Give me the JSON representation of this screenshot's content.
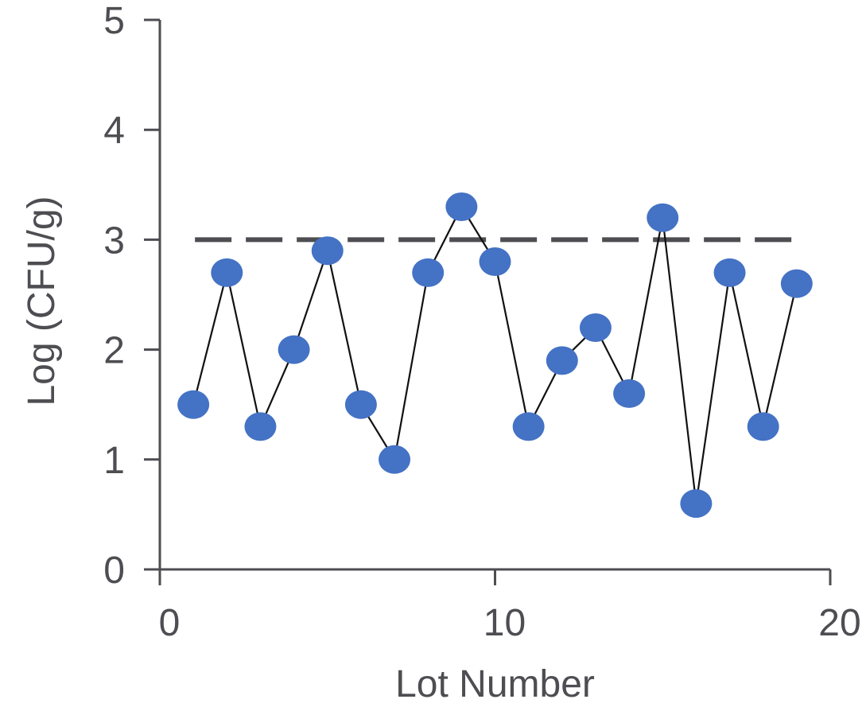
{
  "chart_data": {
    "type": "scatter",
    "title": "",
    "xlabel": "Lot Number",
    "ylabel": "Log (CFU/g)",
    "xlim": [
      0,
      20
    ],
    "ylim": [
      0,
      5
    ],
    "x_ticks": [
      "0",
      "10",
      "20"
    ],
    "y_ticks": [
      "0",
      "1",
      "2",
      "3",
      "4",
      "5"
    ],
    "grid": false,
    "legend": "none",
    "marker_color": "#4472c4",
    "line_color": "#111111",
    "series": [
      {
        "x": [
          1,
          2,
          3,
          4,
          5,
          6,
          7,
          8,
          9,
          10,
          11,
          12,
          13,
          14,
          15,
          16,
          17,
          18,
          19
        ],
        "y": [
          1.5,
          2.7,
          1.3,
          2.0,
          2.9,
          1.5,
          1.0,
          2.7,
          3.3,
          2.8,
          1.3,
          1.9,
          2.2,
          1.6,
          3.2,
          0.6,
          2.7,
          1.3,
          2.6
        ]
      }
    ],
    "reference_line": {
      "y": 3,
      "x_from": 1,
      "x_to": 19,
      "style": "dashed",
      "color": "#4d4d52"
    }
  }
}
